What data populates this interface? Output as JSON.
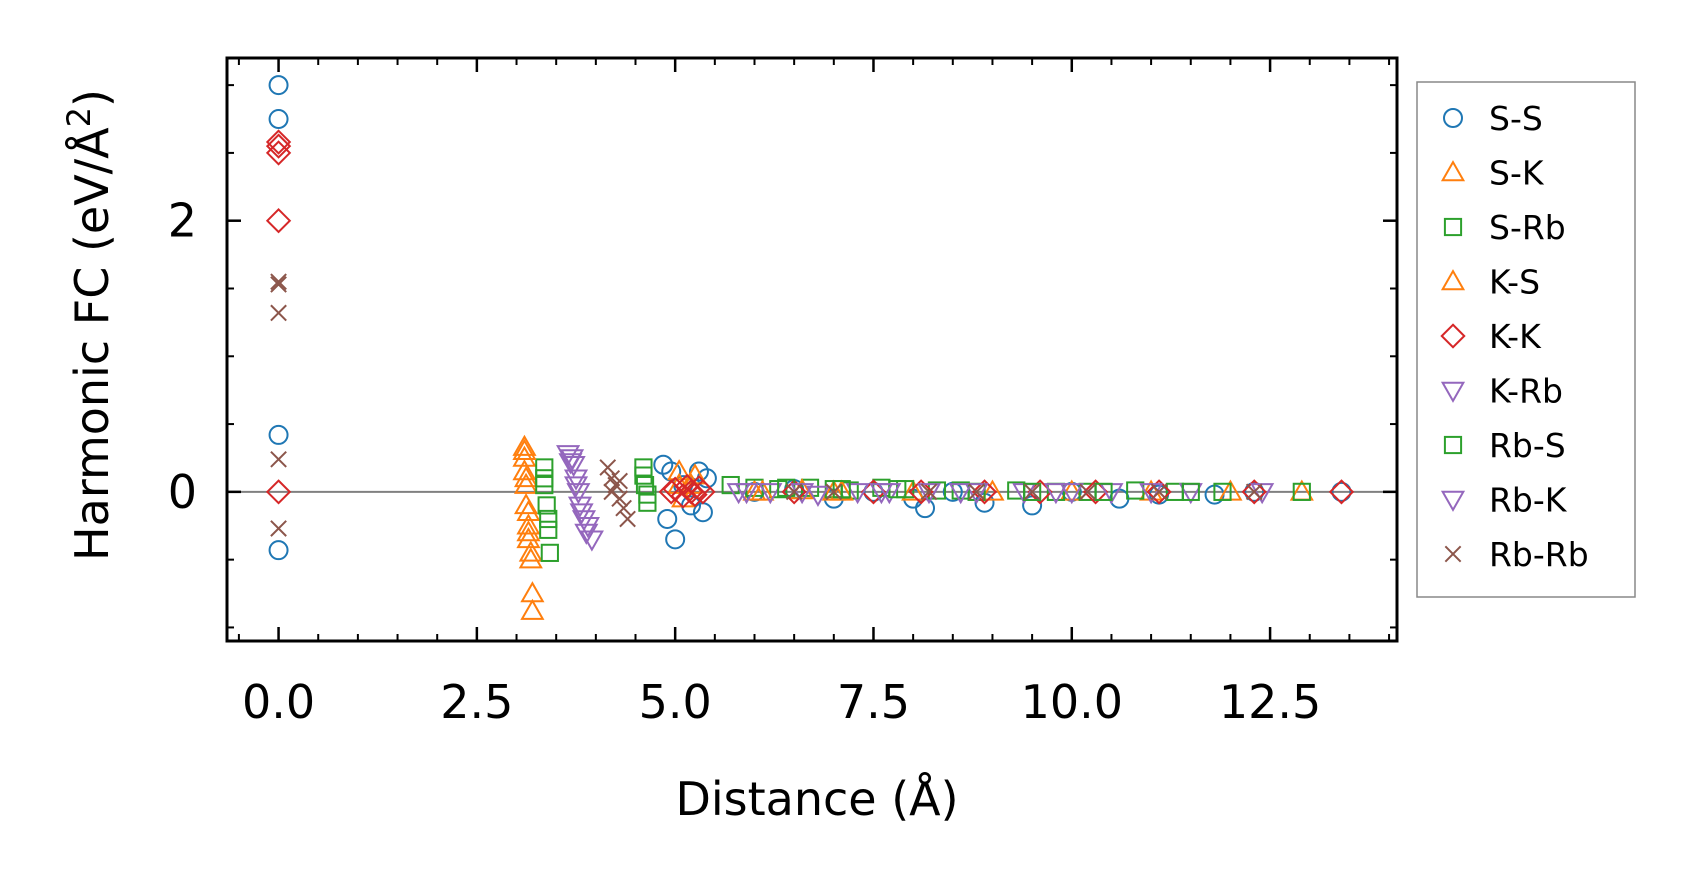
{
  "chart_data": {
    "type": "scatter",
    "title": "",
    "xlabel": "Distance (Å)",
    "ylabel": "Harmonic FC (eV/Å",
    "ylabel_sup": "2",
    "ylabel_close": ")",
    "xlim": [
      -0.65,
      14.1
    ],
    "ylim": [
      -1.1,
      3.2
    ],
    "xticks": [
      0.0,
      2.5,
      5.0,
      7.5,
      10.0,
      12.5
    ],
    "xtick_labels": [
      "0.0",
      "2.5",
      "5.0",
      "7.5",
      "10.0",
      "12.5"
    ],
    "yticks": [
      0,
      2
    ],
    "ytick_labels": [
      "0",
      "2"
    ],
    "x_minor_step": 0.5,
    "y_minor_step": 0.5,
    "reference_line_y": 0,
    "legend_position": "outside-right",
    "series": [
      {
        "name": "S-S",
        "marker": "circle",
        "color": "#1f77b4",
        "x": [
          0,
          0,
          0,
          0,
          4.85,
          4.9,
          4.95,
          5.0,
          5.1,
          5.2,
          5.3,
          5.35,
          5.4,
          6.0,
          6.5,
          7.0,
          7.5,
          8.0,
          8.15,
          8.5,
          8.9,
          9.5,
          10.0,
          10.6,
          11.1,
          11.8,
          12.3,
          13.4
        ],
        "y": [
          3.0,
          2.75,
          0.42,
          -0.43,
          0.2,
          -0.2,
          0.15,
          -0.35,
          0.05,
          -0.1,
          0.15,
          -0.15,
          0.1,
          0.0,
          0.02,
          -0.05,
          0.0,
          -0.05,
          -0.12,
          0.0,
          -0.08,
          -0.1,
          0.0,
          -0.05,
          -0.02,
          -0.02,
          0.0,
          0.0
        ]
      },
      {
        "name": "S-K",
        "marker": "triangle-up",
        "color": "#ff7f0e",
        "x": [
          3.1,
          3.1,
          3.1,
          3.12,
          3.12,
          3.15,
          3.15,
          3.18,
          3.2,
          3.2,
          5.05,
          5.1,
          5.2,
          6.0,
          7.0,
          8.0,
          9.0,
          10.0,
          11.0,
          12.0,
          12.9
        ],
        "y": [
          0.33,
          0.25,
          0.15,
          0.05,
          -0.1,
          -0.25,
          -0.35,
          -0.45,
          -0.75,
          -0.88,
          0.15,
          -0.05,
          0.05,
          0.0,
          0.0,
          0.0,
          0.0,
          0.0,
          0.0,
          0.0,
          0.0
        ]
      },
      {
        "name": "S-Rb",
        "marker": "square",
        "color": "#2ca02c",
        "x": [
          3.35,
          3.35,
          3.38,
          3.4,
          3.42,
          4.6,
          4.62,
          4.65,
          5.7,
          6.0,
          6.3,
          6.7,
          7.0,
          7.2,
          7.6,
          7.9,
          8.3,
          8.8,
          9.3,
          9.8,
          10.2,
          10.8,
          11.3,
          11.9,
          12.9
        ],
        "y": [
          0.18,
          0.05,
          -0.1,
          -0.28,
          -0.45,
          0.18,
          0.05,
          -0.08,
          0.05,
          0.03,
          0.02,
          0.03,
          0.02,
          0.01,
          0.03,
          0.02,
          0.01,
          0.0,
          0.01,
          0.0,
          0.0,
          0.01,
          0.0,
          0.0,
          0.0
        ]
      },
      {
        "name": "K-S",
        "marker": "triangle-up",
        "color": "#ff7f0e",
        "x": [
          3.1,
          3.12,
          3.15,
          3.15,
          3.18,
          5.05,
          5.25,
          6.1,
          6.6,
          7.1
        ],
        "y": [
          0.3,
          0.1,
          -0.15,
          -0.3,
          -0.5,
          0.05,
          0.12,
          0.0,
          0.01,
          0.0
        ]
      },
      {
        "name": "K-K",
        "marker": "diamond",
        "color": "#d62728",
        "x": [
          0,
          0,
          0,
          0,
          0,
          4.95,
          5.0,
          5.1,
          5.15,
          5.2,
          5.25,
          5.3,
          5.35,
          6.5,
          7.5,
          8.1,
          8.9,
          9.6,
          10.3,
          11.1,
          12.3,
          13.4
        ],
        "y": [
          2.58,
          2.55,
          2.5,
          2.0,
          0.0,
          0.0,
          0.02,
          -0.03,
          0.04,
          0.0,
          -0.02,
          0.03,
          0.0,
          0.0,
          0.0,
          0.0,
          0.0,
          0.0,
          0.0,
          0.0,
          0.0,
          0.0
        ]
      },
      {
        "name": "K-Rb",
        "marker": "triangle-down",
        "color": "#9467bd",
        "x": [
          3.65,
          3.7,
          3.72,
          3.75,
          3.78,
          3.8,
          3.85,
          3.9,
          3.95,
          5.8,
          6.2,
          6.8,
          7.3,
          7.7,
          8.2,
          8.8,
          9.4,
          10.0,
          10.5,
          11.5,
          12.4
        ],
        "y": [
          0.28,
          0.25,
          0.2,
          0.1,
          0.0,
          -0.1,
          -0.2,
          -0.25,
          -0.35,
          0.0,
          0.0,
          -0.02,
          0.0,
          0.0,
          0.0,
          0.0,
          0.0,
          0.0,
          0.0,
          0.0,
          0.0
        ]
      },
      {
        "name": "Rb-S",
        "marker": "square",
        "color": "#2ca02c",
        "x": [
          3.35,
          3.4,
          4.6,
          4.65,
          6.4,
          7.1,
          7.8,
          8.6,
          9.5,
          10.4,
          11.5
        ],
        "y": [
          0.1,
          -0.2,
          0.12,
          -0.02,
          0.03,
          0.02,
          0.02,
          0.01,
          0.0,
          0.0,
          0.0
        ]
      },
      {
        "name": "Rb-K",
        "marker": "triangle-down",
        "color": "#9467bd",
        "x": [
          3.68,
          3.75,
          3.82,
          3.88,
          5.9,
          6.6,
          7.6,
          8.6,
          9.8,
          11.0
        ],
        "y": [
          0.22,
          0.05,
          -0.15,
          -0.3,
          0.0,
          0.0,
          0.0,
          0.0,
          0.0,
          0.0
        ]
      },
      {
        "name": "Rb-Rb",
        "marker": "x",
        "color": "#8c564b",
        "x": [
          0,
          0,
          0,
          0,
          0,
          4.15,
          4.2,
          4.25,
          4.3,
          4.35,
          4.4,
          4.2,
          4.3,
          6.5,
          7.0,
          8.2,
          8.8,
          9.5,
          10.2,
          11.1,
          12.3
        ],
        "y": [
          1.55,
          1.53,
          1.32,
          0.24,
          -0.27,
          0.18,
          0.1,
          0.05,
          -0.05,
          -0.12,
          -0.2,
          0.0,
          0.08,
          0.0,
          0.0,
          0.0,
          0.0,
          0.0,
          0.0,
          0.0,
          0.0
        ]
      }
    ]
  }
}
